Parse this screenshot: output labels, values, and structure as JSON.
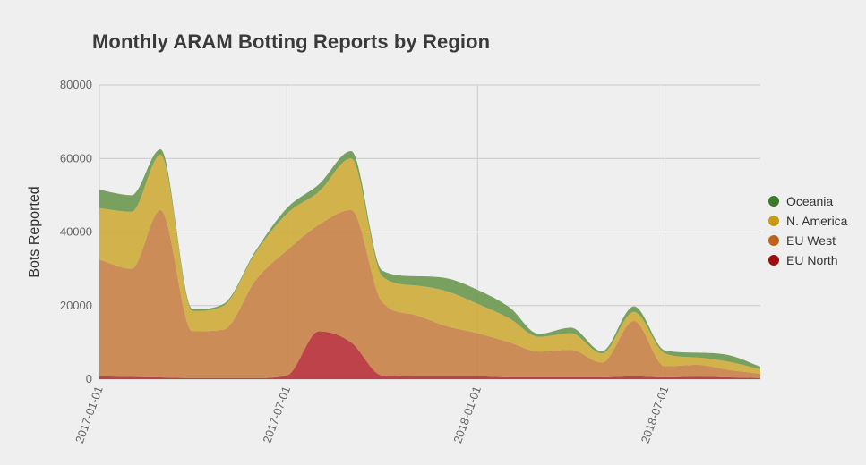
{
  "chart_data": {
    "type": "area",
    "stacked": true,
    "title": "Monthly ARAM Botting Reports by Region",
    "xlabel": "",
    "ylabel": "Bots Reported",
    "ylim": [
      0,
      80000
    ],
    "yticks": [
      0,
      20000,
      40000,
      60000,
      80000
    ],
    "xlim": [
      "2017-01-01",
      "2018-10-01"
    ],
    "xticks": [
      "2017-01-01",
      "2017-07-01",
      "2018-01-01",
      "2018-07-01"
    ],
    "grid": true,
    "legend_position": "right",
    "x": [
      "2017-01-01",
      "2017-02-01",
      "2017-03-01",
      "2017-04-01",
      "2017-05-01",
      "2017-06-01",
      "2017-07-01",
      "2017-08-01",
      "2017-09-01",
      "2017-10-01",
      "2017-11-01",
      "2017-12-01",
      "2018-01-01",
      "2018-02-01",
      "2018-03-01",
      "2018-04-01",
      "2018-05-01",
      "2018-06-01",
      "2018-07-01",
      "2018-08-01",
      "2018-09-01",
      "2018-10-01"
    ],
    "series": [
      {
        "name": "EU North",
        "color": "#b8333b",
        "values": [
          800,
          600,
          500,
          300,
          300,
          300,
          1000,
          13000,
          10000,
          1000,
          800,
          800,
          800,
          500,
          500,
          500,
          500,
          800,
          500,
          700,
          500,
          300
        ]
      },
      {
        "name": "EU West",
        "color": "#c9834a",
        "values": [
          31700,
          29400,
          45500,
          12700,
          13200,
          26700,
          34000,
          29000,
          36000,
          20000,
          16700,
          13700,
          11700,
          9500,
          7000,
          7500,
          4000,
          15000,
          3000,
          3200,
          2000,
          1200
        ]
      },
      {
        "name": "N. America",
        "color": "#cfad3c",
        "values": [
          14000,
          15500,
          15000,
          5500,
          6500,
          7500,
          10000,
          9000,
          14000,
          7000,
          8000,
          9500,
          8000,
          6500,
          4000,
          4500,
          2500,
          2500,
          3500,
          2000,
          2200,
          1200
        ]
      },
      {
        "name": "Oceania",
        "color": "#6e9a52",
        "values": [
          5000,
          4500,
          1500,
          500,
          500,
          500,
          1500,
          2000,
          2000,
          1500,
          2500,
          3500,
          3800,
          3000,
          800,
          1500,
          600,
          1500,
          800,
          1300,
          1800,
          700
        ]
      }
    ],
    "legend_order": [
      "Oceania",
      "N. America",
      "EU West",
      "EU North"
    ],
    "legend_marker_colors": {
      "Oceania": "#3c7a2a",
      "N. America": "#c99a14",
      "EU West": "#c0631a",
      "EU North": "#9d0e0e"
    }
  }
}
